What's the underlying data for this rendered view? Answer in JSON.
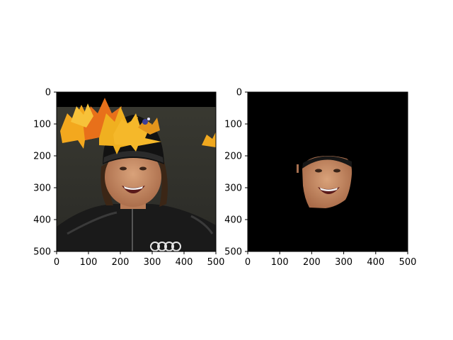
{
  "chart_data": [
    {
      "type": "image",
      "panel": "left",
      "content": "photo of a smiling person wearing a black cap and black jacket, with autumn maple leaves overlaid at the top; black band across the top rows",
      "xlim": [
        0,
        500
      ],
      "ylim": [
        500,
        0
      ],
      "xticks": [
        0,
        100,
        200,
        300,
        400,
        500
      ],
      "yticks": [
        0,
        100,
        200,
        300,
        400,
        500
      ],
      "grid": false,
      "colors": {
        "background_top": "#000000",
        "jacket": "#1b1b1b",
        "skin": "#c88a62",
        "leaf_orange": "#f0a020",
        "leaf_red": "#e05a10"
      }
    },
    {
      "type": "image",
      "panel": "right",
      "content": "same image masked to show only the face region; everything else black",
      "xlim": [
        0,
        500
      ],
      "ylim": [
        500,
        0
      ],
      "xticks": [
        0,
        100,
        200,
        300,
        400,
        500
      ],
      "yticks": [
        0,
        100,
        200,
        300,
        400,
        500
      ],
      "grid": false,
      "colors": {
        "background": "#000000",
        "skin": "#c88a62"
      }
    }
  ]
}
